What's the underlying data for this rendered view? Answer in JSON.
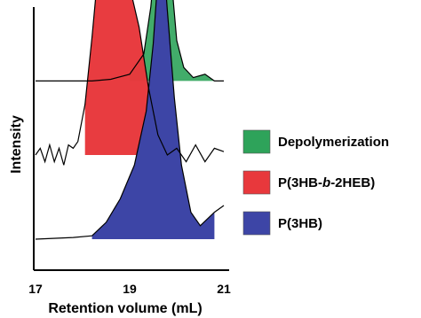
{
  "chart_data": {
    "type": "area",
    "title": "",
    "xlabel": "Retention volume (mL)",
    "ylabel": "Intensity",
    "xlim": [
      17,
      21
    ],
    "ylim": [
      0,
      1
    ],
    "x_ticks": [
      "17",
      "19",
      "21"
    ],
    "grid": false,
    "legend_position": "right",
    "y_offset_step": 0.25,
    "series": [
      {
        "name": "P(3HB)",
        "color": "#3d45a6",
        "offset": 0.0,
        "points": [
          [
            17.0,
            0.0
          ],
          [
            17.8,
            0.005
          ],
          [
            18.2,
            0.01
          ],
          [
            18.5,
            0.05
          ],
          [
            18.8,
            0.12
          ],
          [
            19.1,
            0.22
          ],
          [
            19.35,
            0.38
          ],
          [
            19.5,
            0.58
          ],
          [
            19.6,
            0.78
          ],
          [
            19.65,
            0.86
          ],
          [
            19.72,
            0.83
          ],
          [
            19.8,
            0.68
          ],
          [
            19.95,
            0.42
          ],
          [
            20.1,
            0.22
          ],
          [
            20.3,
            0.08
          ],
          [
            20.5,
            0.04
          ],
          [
            20.8,
            0.08
          ],
          [
            21.0,
            0.1
          ]
        ]
      },
      {
        "name": "P(3HB-b-2HEB)",
        "color": "#e8383c",
        "offset": 0.25,
        "points": [
          [
            17.0,
            0.0
          ],
          [
            17.1,
            0.02
          ],
          [
            17.2,
            -0.02
          ],
          [
            17.3,
            0.03
          ],
          [
            17.4,
            -0.02
          ],
          [
            17.5,
            0.02
          ],
          [
            17.6,
            -0.03
          ],
          [
            17.7,
            0.03
          ],
          [
            17.8,
            0.02
          ],
          [
            17.9,
            0.04
          ],
          [
            18.05,
            0.15
          ],
          [
            18.2,
            0.35
          ],
          [
            18.35,
            0.58
          ],
          [
            18.45,
            0.72
          ],
          [
            18.55,
            0.75
          ],
          [
            18.65,
            0.7
          ],
          [
            18.8,
            0.6
          ],
          [
            19.0,
            0.5
          ],
          [
            19.2,
            0.38
          ],
          [
            19.4,
            0.2
          ],
          [
            19.6,
            0.06
          ],
          [
            19.8,
            0.0
          ],
          [
            20.0,
            0.02
          ],
          [
            20.2,
            -0.02
          ],
          [
            20.4,
            0.03
          ],
          [
            20.6,
            -0.02
          ],
          [
            20.8,
            0.02
          ],
          [
            21.0,
            0.01
          ]
        ]
      },
      {
        "name": "Depolymerization",
        "color": "#2ea35a",
        "offset": 0.47,
        "points": [
          [
            17.0,
            0.0
          ],
          [
            18.2,
            0.0
          ],
          [
            18.6,
            0.005
          ],
          [
            19.0,
            0.02
          ],
          [
            19.3,
            0.08
          ],
          [
            19.45,
            0.22
          ],
          [
            19.55,
            0.38
          ],
          [
            19.65,
            0.5
          ],
          [
            19.72,
            0.52
          ],
          [
            19.8,
            0.46
          ],
          [
            19.9,
            0.28
          ],
          [
            20.0,
            0.12
          ],
          [
            20.15,
            0.04
          ],
          [
            20.35,
            0.01
          ],
          [
            20.6,
            0.02
          ],
          [
            20.8,
            0.0
          ],
          [
            21.0,
            0.0
          ]
        ]
      }
    ]
  }
}
